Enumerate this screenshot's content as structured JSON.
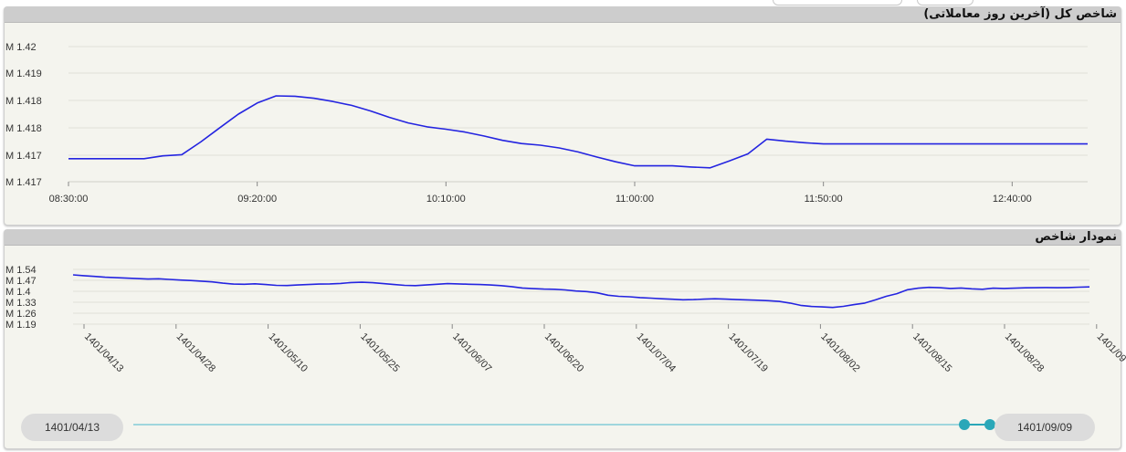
{
  "chart_data": [
    {
      "type": "line",
      "title": "شاخص کل (آخرین روز معاملاتی)",
      "y_tick_labels": [
        "M 1.42",
        "M 1.419",
        "M 1.418",
        "M 1.418",
        "M 1.417",
        "M 1.417"
      ],
      "x_tick_labels": [
        "08:30:00",
        "09:20:00",
        "10:10:00",
        "11:00:00",
        "11:50:00",
        "12:40:00"
      ],
      "x_range": [
        "08:30:00",
        "13:00:00"
      ],
      "y_range_millions": [
        1.4166,
        1.42
      ],
      "grid": "horizontal",
      "color": "#2424e0",
      "series": [
        {
          "x": [
            "08:30",
            "08:35",
            "08:40",
            "08:45",
            "08:50",
            "08:55",
            "09:00",
            "09:05",
            "09:10",
            "09:15",
            "09:20",
            "09:25",
            "09:30",
            "09:35",
            "09:40",
            "09:45",
            "09:50",
            "09:55",
            "10:00",
            "10:05",
            "10:10",
            "10:15",
            "10:20",
            "10:25",
            "10:30",
            "10:35",
            "10:40",
            "10:45",
            "10:50",
            "10:55",
            "11:00",
            "11:05",
            "11:10",
            "11:15",
            "11:20",
            "11:25",
            "11:30",
            "11:35",
            "11:40",
            "11:45",
            "11:50",
            "11:55",
            "12:00",
            "12:05",
            "12:10",
            "12:15",
            "12:20",
            "12:25",
            "12:30",
            "12:35",
            "12:40",
            "12:45",
            "12:50",
            "12:55",
            "13:00"
          ],
          "values": [
            1.41718,
            1.41718,
            1.41718,
            1.41718,
            1.41718,
            1.41725,
            1.41728,
            1.4176,
            1.41795,
            1.4183,
            1.41858,
            1.41876,
            1.41875,
            1.4187,
            1.41862,
            1.41852,
            1.41838,
            1.41822,
            1.41808,
            1.41798,
            1.41792,
            1.41785,
            1.41775,
            1.41764,
            1.41756,
            1.41752,
            1.41745,
            1.41735,
            1.41722,
            1.4171,
            1.417,
            1.417,
            1.417,
            1.41697,
            1.41695,
            1.41712,
            1.4173,
            1.41767,
            1.41762,
            1.41758,
            1.41755,
            1.41755,
            1.41755,
            1.41755,
            1.41755,
            1.41755,
            1.41755,
            1.41755,
            1.41755,
            1.41755,
            1.41755,
            1.41755,
            1.41755,
            1.41755,
            1.41755
          ]
        }
      ]
    },
    {
      "type": "line",
      "title": "نمودار شاخص",
      "y_tick_labels": [
        "M 1.54",
        "M 1.47",
        "M 1.4",
        "M 1.33",
        "M 1.26",
        "M 1.19"
      ],
      "y_ticks": [
        1.54,
        1.47,
        1.4,
        1.33,
        1.26,
        1.19
      ],
      "x_tick_labels": [
        "1401/04/13",
        "1401/04/28",
        "1401/05/10",
        "1401/05/25",
        "1401/06/07",
        "1401/06/20",
        "1401/07/04",
        "1401/07/19",
        "1401/08/02",
        "1401/08/15",
        "1401/08/28",
        "1401/09"
      ],
      "y_range_millions": [
        1.19,
        1.54
      ],
      "grid": "horizontal",
      "color": "#2424e0",
      "series": [
        {
          "values": [
            1.505,
            1.5,
            1.495,
            1.49,
            1.487,
            1.484,
            1.481,
            1.478,
            1.48,
            1.476,
            1.472,
            1.469,
            1.465,
            1.46,
            1.452,
            1.446,
            1.445,
            1.448,
            1.443,
            1.438,
            1.437,
            1.44,
            1.443,
            1.446,
            1.447,
            1.45,
            1.456,
            1.458,
            1.455,
            1.449,
            1.443,
            1.438,
            1.436,
            1.44,
            1.445,
            1.449,
            1.447,
            1.445,
            1.443,
            1.44,
            1.436,
            1.43,
            1.421,
            1.417,
            1.414,
            1.413,
            1.409,
            1.402,
            1.398,
            1.39,
            1.375,
            1.368,
            1.365,
            1.36,
            1.356,
            1.352,
            1.349,
            1.346,
            1.347,
            1.35,
            1.352,
            1.35,
            1.347,
            1.345,
            1.343,
            1.34,
            1.335,
            1.325,
            1.31,
            1.303,
            1.3,
            1.297,
            1.304,
            1.315,
            1.325,
            1.345,
            1.368,
            1.385,
            1.41,
            1.42,
            1.425,
            1.423,
            1.418,
            1.421,
            1.416,
            1.413,
            1.42,
            1.418,
            1.42,
            1.422,
            1.423,
            1.424,
            1.423,
            1.424,
            1.426,
            1.428
          ]
        }
      ],
      "range_selector": {
        "start": "1401/04/13",
        "end": "1401/09/09",
        "handle_color": "#2aa7b8"
      }
    }
  ]
}
